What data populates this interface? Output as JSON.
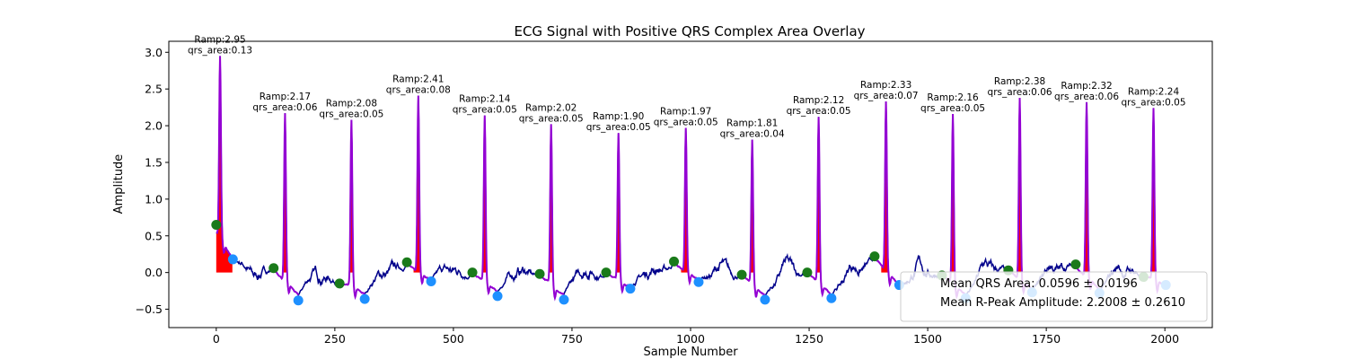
{
  "chart_data": {
    "type": "line",
    "title": "ECG Signal with Positive QRS Complex Area Overlay",
    "xlabel": "Sample Number",
    "ylabel": "Amplitude",
    "xlim": [
      -100,
      2100
    ],
    "ylim": [
      -0.75,
      3.15
    ],
    "xticks": [
      0,
      250,
      500,
      750,
      1000,
      1250,
      1500,
      1750,
      2000
    ],
    "yticks": [
      -0.5,
      0.0,
      0.5,
      1.0,
      1.5,
      2.0,
      2.5,
      3.0
    ],
    "xtick_labels": [
      "0",
      "250",
      "500",
      "750",
      "1000",
      "1250",
      "1500",
      "1750",
      "2000"
    ],
    "ytick_labels": [
      "−0.5",
      "0.0",
      "0.5",
      "1.0",
      "1.5",
      "2.0",
      "2.5",
      "3.0"
    ],
    "grid": false,
    "series_colors": {
      "signal": "#00008b",
      "qrs_segment": "#9400d3",
      "qrs_area": "#ff0000",
      "onset_marker": "#1a7a1a",
      "offset_marker": "#1e90ff"
    },
    "r_peaks": [
      {
        "x": 8,
        "y": 2.95,
        "label_ramp": "Ramp:2.95",
        "label_area": "qrs_area:0.13"
      },
      {
        "x": 145,
        "y": 2.17,
        "label_ramp": "Ramp:2.17",
        "label_area": "qrs_area:0.06"
      },
      {
        "x": 285,
        "y": 2.08,
        "label_ramp": "Ramp:2.08",
        "label_area": "qrs_area:0.05"
      },
      {
        "x": 426,
        "y": 2.41,
        "label_ramp": "Ramp:2.41",
        "label_area": "qrs_area:0.08"
      },
      {
        "x": 566,
        "y": 2.14,
        "label_ramp": "Ramp:2.14",
        "label_area": "qrs_area:0.05"
      },
      {
        "x": 706,
        "y": 2.02,
        "label_ramp": "Ramp:2.02",
        "label_area": "qrs_area:0.05"
      },
      {
        "x": 848,
        "y": 1.9,
        "label_ramp": "Ramp:1.90",
        "label_area": "qrs_area:0.05"
      },
      {
        "x": 990,
        "y": 1.97,
        "label_ramp": "Ramp:1.97",
        "label_area": "qrs_area:0.05"
      },
      {
        "x": 1130,
        "y": 1.81,
        "label_ramp": "Ramp:1.81",
        "label_area": "qrs_area:0.04"
      },
      {
        "x": 1270,
        "y": 2.12,
        "label_ramp": "Ramp:2.12",
        "label_area": "qrs_area:0.05"
      },
      {
        "x": 1412,
        "y": 2.33,
        "label_ramp": "Ramp:2.33",
        "label_area": "qrs_area:0.07"
      },
      {
        "x": 1553,
        "y": 2.16,
        "label_ramp": "Ramp:2.16",
        "label_area": "qrs_area:0.05"
      },
      {
        "x": 1694,
        "y": 2.38,
        "label_ramp": "Ramp:2.38",
        "label_area": "qrs_area:0.06"
      },
      {
        "x": 1835,
        "y": 2.32,
        "label_ramp": "Ramp:2.32",
        "label_area": "qrs_area:0.06"
      },
      {
        "x": 1976,
        "y": 2.24,
        "label_ramp": "Ramp:2.24",
        "label_area": "qrs_area:0.05"
      }
    ],
    "onset_markers": [
      {
        "x": 0,
        "y": 0.65
      },
      {
        "x": 121,
        "y": 0.06
      },
      {
        "x": 260,
        "y": -0.15
      },
      {
        "x": 402,
        "y": 0.14
      },
      {
        "x": 540,
        "y": 0.0
      },
      {
        "x": 682,
        "y": -0.02
      },
      {
        "x": 822,
        "y": 0.0
      },
      {
        "x": 965,
        "y": 0.15
      },
      {
        "x": 1108,
        "y": -0.03
      },
      {
        "x": 1246,
        "y": 0.0
      },
      {
        "x": 1388,
        "y": 0.22
      },
      {
        "x": 1530,
        "y": -0.04
      },
      {
        "x": 1670,
        "y": 0.03
      },
      {
        "x": 1812,
        "y": 0.11
      },
      {
        "x": 1955,
        "y": -0.06
      }
    ],
    "offset_markers": [
      {
        "x": 35,
        "y": 0.18
      },
      {
        "x": 173,
        "y": -0.38
      },
      {
        "x": 313,
        "y": -0.36
      },
      {
        "x": 453,
        "y": -0.12
      },
      {
        "x": 593,
        "y": -0.32
      },
      {
        "x": 733,
        "y": -0.37
      },
      {
        "x": 873,
        "y": -0.22
      },
      {
        "x": 1017,
        "y": -0.13
      },
      {
        "x": 1157,
        "y": -0.37
      },
      {
        "x": 1297,
        "y": -0.35
      },
      {
        "x": 1440,
        "y": -0.17
      },
      {
        "x": 1580,
        "y": -0.35
      },
      {
        "x": 1720,
        "y": -0.27
      },
      {
        "x": 1862,
        "y": -0.28
      },
      {
        "x": 2002,
        "y": -0.17
      }
    ],
    "legend": {
      "location": "lower right",
      "entries": [
        "Mean QRS Area: 0.0596 ± 0.0196",
        "Mean R-Peak Amplitude: 2.2008 ± 0.2610"
      ]
    }
  }
}
